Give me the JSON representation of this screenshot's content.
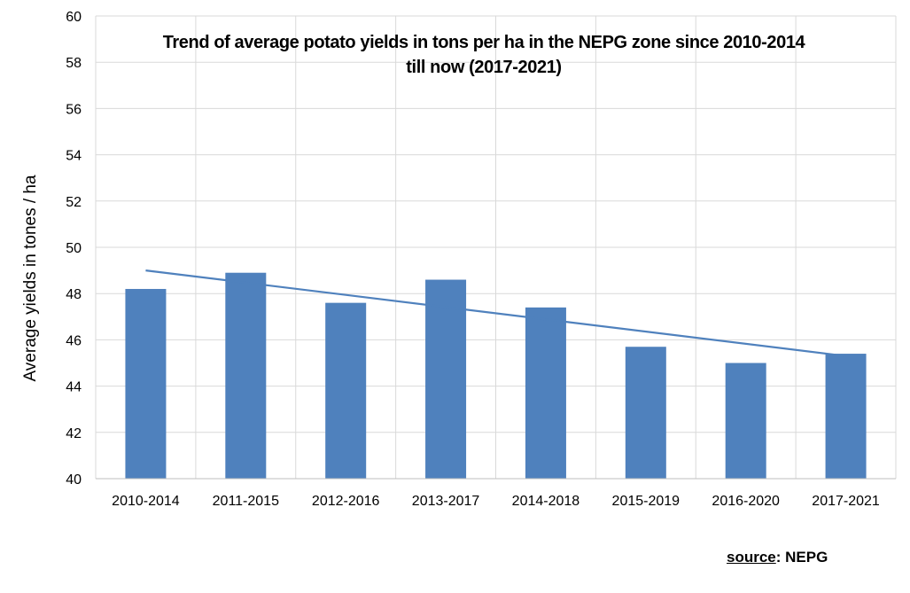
{
  "chart_data": {
    "type": "bar",
    "title": "Trend of average  potato yields in tons per ha in the NEPG zone since 2010-2014",
    "subtitle": "till now (2017-2021)",
    "xlabel": "",
    "ylabel": "Average yields in tones / ha",
    "categories": [
      "2010-2014",
      "2011-2015",
      "2012-2016",
      "2013-2017",
      "2014-2018",
      "2015-2019",
      "2016-2020",
      "2017-2021"
    ],
    "values": [
      48.2,
      48.9,
      47.6,
      48.6,
      47.4,
      45.7,
      45.0,
      45.4
    ],
    "trendline": {
      "type": "linear",
      "start": 49.0,
      "end": 45.3
    },
    "ylim": [
      40,
      60
    ],
    "yticks": [
      40,
      42,
      44,
      46,
      48,
      50,
      52,
      54,
      56,
      58,
      60
    ],
    "grid": true,
    "legend": "none",
    "colors": {
      "bar": "#4f81bd",
      "trendline": "#4f81bd",
      "grid": "#d9d9d9"
    }
  },
  "source": {
    "label": "source",
    "sep": ": ",
    "value": "NEPG"
  }
}
